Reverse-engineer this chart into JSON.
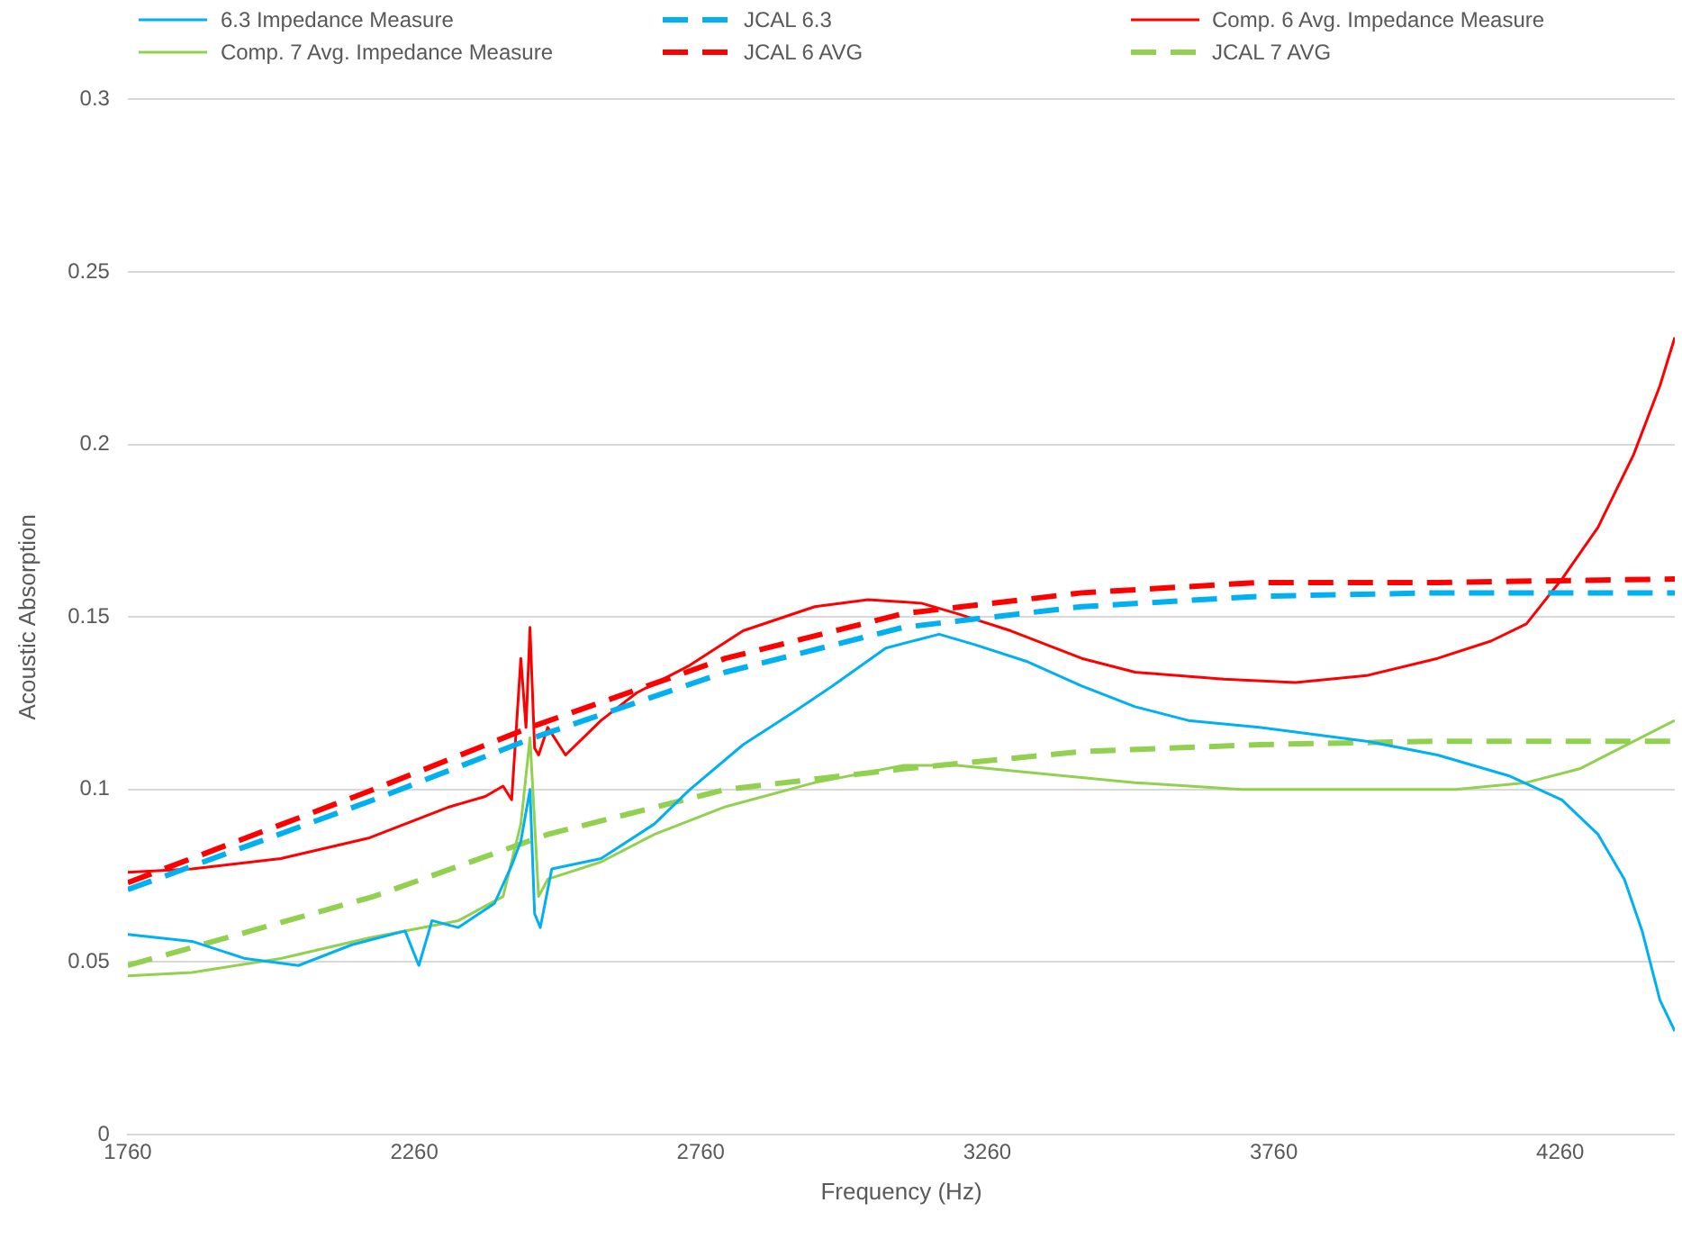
{
  "chart_data": {
    "type": "line",
    "xlabel": "Frequency (Hz)",
    "ylabel": "Acoustic Absorption",
    "xlim": [
      1760,
      4460
    ],
    "xticks": [
      1760,
      2260,
      2760,
      3260,
      3760,
      4260
    ],
    "ylim": [
      0,
      0.3
    ],
    "yticks": [
      0,
      0.05,
      0.1,
      0.15,
      0.2,
      0.25,
      0.3
    ],
    "grid": "y",
    "legend": "top",
    "marker": "none",
    "series": [
      {
        "name": "6.3 Impedance Measure",
        "color": "#00b0f0",
        "line_style": "solid",
        "x": [
          1760,
          1872,
          1965,
          2058,
          2151,
          2244,
          2268,
          2291,
          2337,
          2400,
          2430,
          2446,
          2462,
          2470,
          2480,
          2500,
          2586,
          2679,
          2741,
          2834,
          2927,
          2990,
          3083,
          3176,
          3238,
          3331,
          3425,
          3518,
          3611,
          3735,
          3922,
          4046,
          4170,
          4263,
          4326,
          4372,
          4403,
          4434,
          4460
        ],
        "values": [
          0.058,
          0.056,
          0.051,
          0.049,
          0.055,
          0.059,
          0.049,
          0.062,
          0.06,
          0.067,
          0.078,
          0.085,
          0.1,
          0.064,
          0.06,
          0.077,
          0.08,
          0.09,
          0.1,
          0.113,
          0.123,
          0.13,
          0.141,
          0.145,
          0.142,
          0.137,
          0.13,
          0.124,
          0.12,
          0.118,
          0.114,
          0.11,
          0.104,
          0.097,
          0.087,
          0.074,
          0.059,
          0.039,
          0.03
        ]
      },
      {
        "name": "JCAL 6.3",
        "color": "#00b0f0",
        "line_style": "dashed",
        "x": [
          1760,
          2189,
          2468,
          2803,
          3114,
          3425,
          3735,
          4046,
          4460
        ],
        "values": [
          0.071,
          0.097,
          0.115,
          0.134,
          0.147,
          0.153,
          0.156,
          0.157,
          0.157
        ]
      },
      {
        "name": "Comp. 6 Avg. Impedance Measure",
        "color": "#ff0000",
        "line_style": "solid",
        "x": [
          1760,
          1872,
          2027,
          2182,
          2322,
          2384,
          2415,
          2430,
          2446,
          2455,
          2462,
          2470,
          2477,
          2493,
          2524,
          2586,
          2648,
          2741,
          2834,
          2959,
          3052,
          3145,
          3207,
          3301,
          3425,
          3518,
          3673,
          3798,
          3922,
          4046,
          4139,
          4201,
          4263,
          4326,
          4388,
          4434,
          4460
        ],
        "values": [
          0.076,
          0.077,
          0.08,
          0.086,
          0.095,
          0.098,
          0.101,
          0.097,
          0.138,
          0.118,
          0.147,
          0.112,
          0.11,
          0.118,
          0.11,
          0.12,
          0.128,
          0.136,
          0.146,
          0.153,
          0.155,
          0.154,
          0.151,
          0.146,
          0.138,
          0.134,
          0.132,
          0.131,
          0.133,
          0.138,
          0.143,
          0.148,
          0.161,
          0.176,
          0.197,
          0.217,
          0.231
        ]
      },
      {
        "name": "Comp. 7 Avg. Impedance Measure",
        "color": "#92d050",
        "line_style": "solid",
        "x": [
          1760,
          1872,
          2027,
          2182,
          2337,
          2415,
          2446,
          2462,
          2477,
          2493,
          2586,
          2679,
          2803,
          2959,
          3114,
          3207,
          3331,
          3518,
          3704,
          3891,
          4077,
          4201,
          4294,
          4460
        ],
        "values": [
          0.046,
          0.047,
          0.051,
          0.057,
          0.062,
          0.069,
          0.09,
          0.115,
          0.069,
          0.074,
          0.079,
          0.087,
          0.095,
          0.102,
          0.107,
          0.107,
          0.105,
          0.102,
          0.1,
          0.1,
          0.1,
          0.102,
          0.106,
          0.12
        ]
      },
      {
        "name": "JCAL 6 AVG",
        "color": "#ff0000",
        "line_style": "dashed",
        "x": [
          1760,
          2189,
          2462,
          2803,
          3114,
          3425,
          3735,
          4046,
          4460
        ],
        "values": [
          0.073,
          0.1,
          0.118,
          0.138,
          0.151,
          0.157,
          0.16,
          0.16,
          0.161
        ]
      },
      {
        "name": "JCAL 7 AVG",
        "color": "#92d050",
        "line_style": "dashed",
        "x": [
          1760,
          2189,
          2493,
          2803,
          3114,
          3425,
          3735,
          4046,
          4460
        ],
        "values": [
          0.049,
          0.069,
          0.087,
          0.1,
          0.106,
          0.111,
          0.113,
          0.114,
          0.114
        ]
      }
    ]
  }
}
